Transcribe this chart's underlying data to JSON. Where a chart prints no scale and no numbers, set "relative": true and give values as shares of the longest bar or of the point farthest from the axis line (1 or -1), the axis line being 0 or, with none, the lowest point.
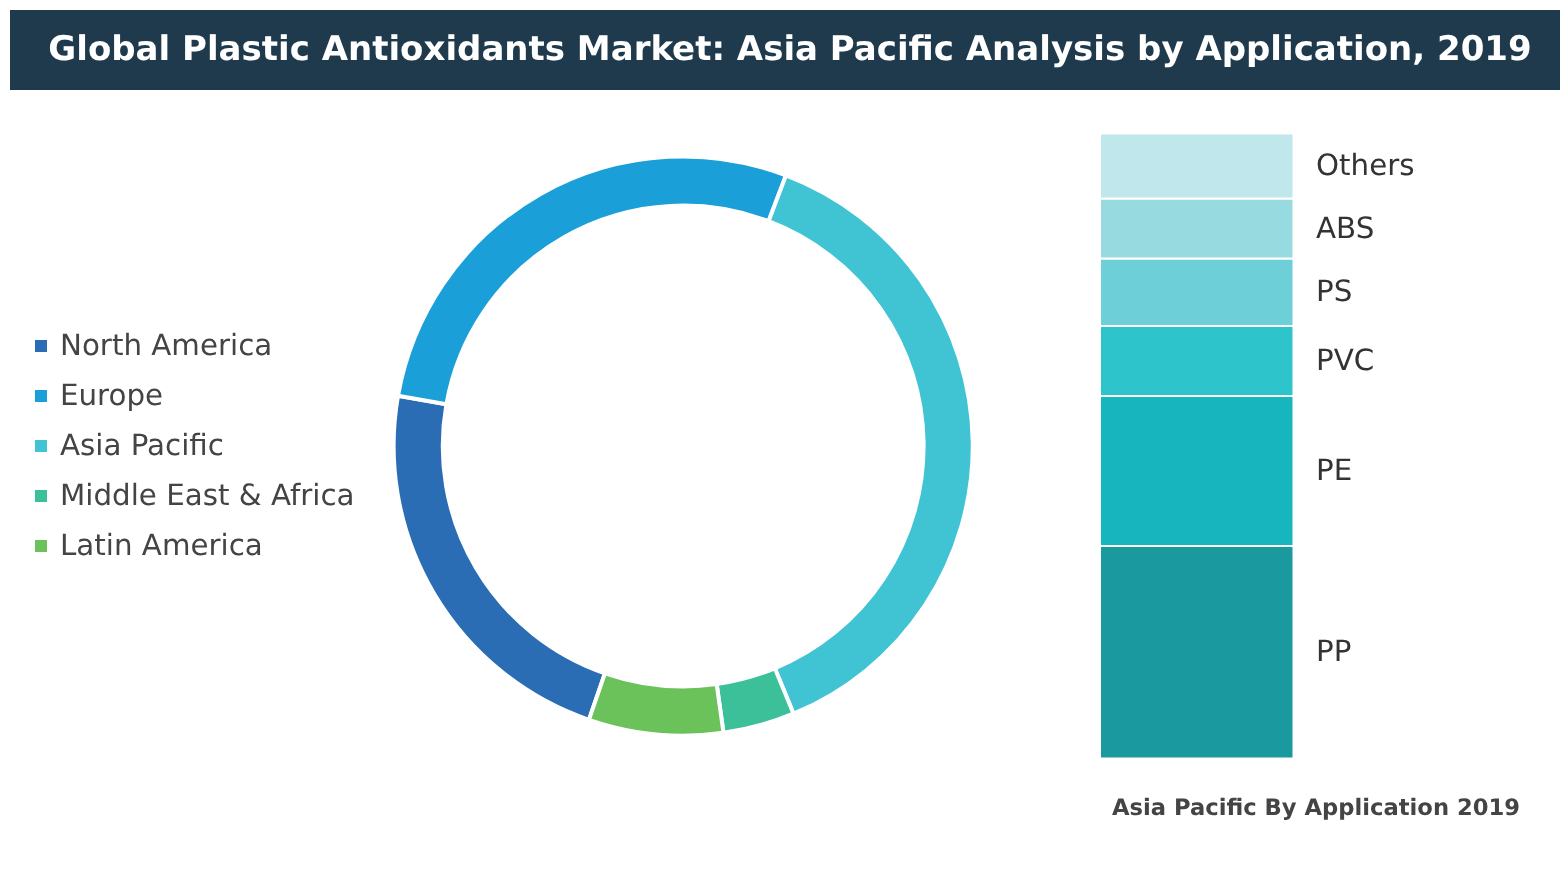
{
  "chart_data": [
    {
      "type": "donut",
      "title": "Global Plastic Antioxidants Market: Asia Pacific Analysis by Application, 2019",
      "categories": [
        "North America",
        "Europe",
        "Asia Pacific",
        "Middle East & Africa",
        "Latin America"
      ],
      "values": [
        22.5,
        28,
        38,
        4,
        7.5
      ],
      "colors": [
        "#2a6db5",
        "#1a9fd8",
        "#40c4d4",
        "#3cc09a",
        "#6cc25a"
      ],
      "legend": "left"
    },
    {
      "type": "bar",
      "stacked": true,
      "relative": true,
      "categories": [
        null
      ],
      "xlabel": "Asia Pacific By Application 2019",
      "legend": false,
      "series": [
        {
          "name": "PP",
          "color": "#1a9a9e",
          "values": [
            0.34
          ]
        },
        {
          "name": "PE",
          "color": "#17b5bd",
          "values": [
            0.24
          ]
        },
        {
          "name": "PVC",
          "color": "#2ec4cc",
          "values": [
            0.112
          ]
        },
        {
          "name": "PS",
          "color": "#6dcfd8",
          "values": [
            0.108
          ]
        },
        {
          "name": "ABS",
          "color": "#97dae0",
          "values": [
            0.096
          ]
        },
        {
          "name": "Others",
          "color": "#bfe7ec",
          "values": [
            0.104
          ]
        }
      ]
    }
  ]
}
